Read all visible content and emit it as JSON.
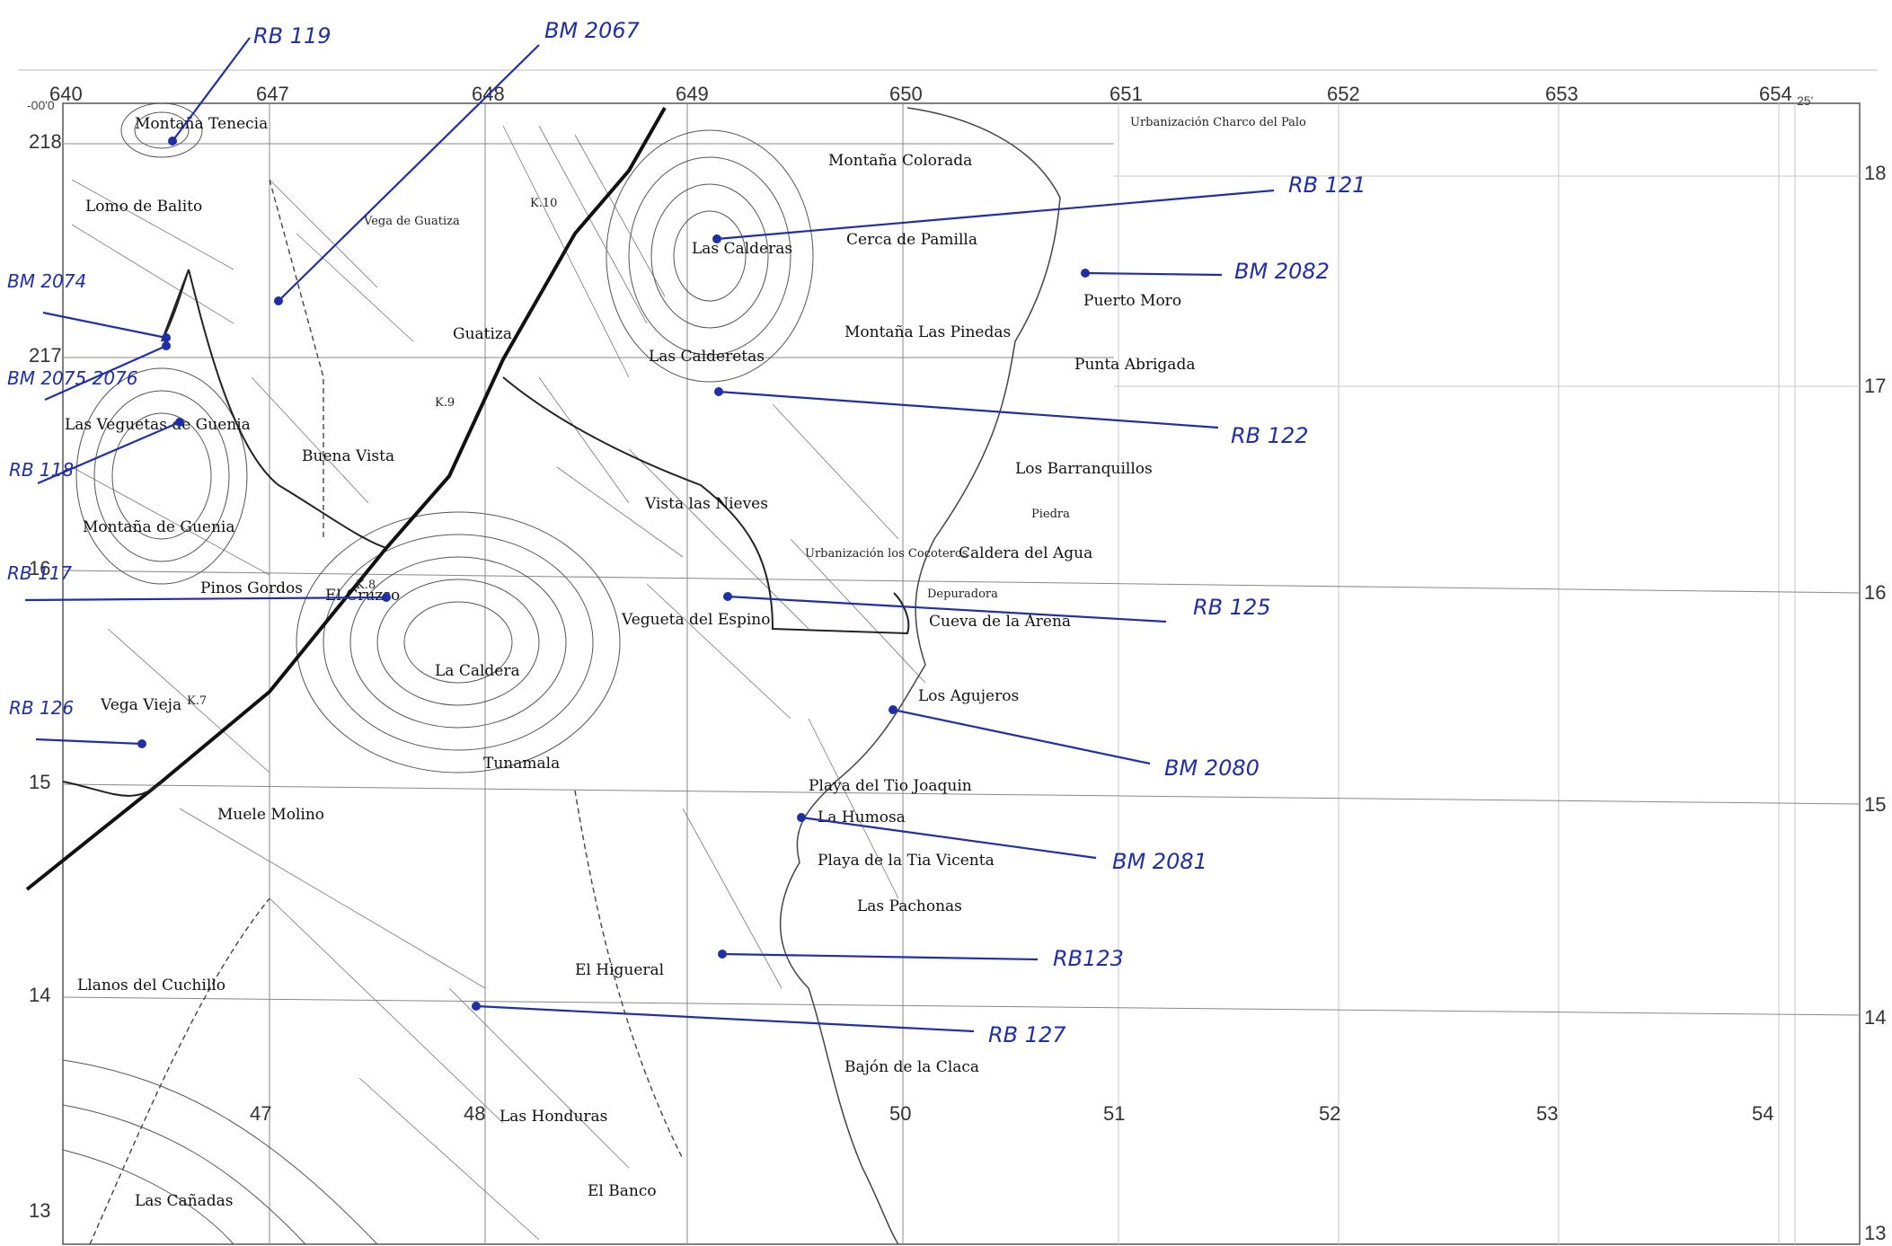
{
  "grid_top": [
    "640",
    "647",
    "648",
    "649",
    "650",
    "651",
    "652",
    "653",
    "654"
  ],
  "grid_bottom": [
    "47",
    "48",
    "50",
    "51",
    "52",
    "53",
    "54"
  ],
  "grid_left": [
    "218",
    "217",
    "16",
    "15",
    "14",
    "13"
  ],
  "grid_right": [
    "18",
    "17",
    "16",
    "15",
    "14",
    "13"
  ],
  "corner_left": "-00'0",
  "corner_right": "25'",
  "place_names": [
    "Montaña Tenecia",
    "Lomo de Balito",
    "Las Veguetas de Guenia",
    "Montaña de Guenia",
    "Buena Vista",
    "Guatiza",
    "Las Calderas",
    "Las Calderetas",
    "Montaña Colorada",
    "Cerca de Pamilla",
    "Puerto Moro",
    "Montaña Las Pinedas",
    "Punta Abrigada",
    "Urbanización Charco del Palo",
    "Los Barranquillos",
    "Caldera del Agua",
    "Vista las Nieves",
    "Urbanización los Cocoteros",
    "Cueva de la Arena",
    "Vegueta del Espino",
    "Pinos Gordos",
    "El Cruzso",
    "La Caldera",
    "Los Agujeros",
    "Vega Vieja",
    "Tunamala",
    "Playa del Tio Joaquin",
    "La Humosa",
    "Muele Molino",
    "Playa de la Tia Vicenta",
    "Las Pachonas",
    "El Higueral",
    "Llanos del Cuchillo",
    "Bajón de la Claca",
    "Las Honduras",
    "El Banco",
    "Las Cañadas",
    "Depuradora",
    "Piedra",
    "K.10",
    "K.9",
    "K.8",
    "K.7",
    "Vega de Guatiza"
  ],
  "annotations": [
    "RB 119",
    "BM 2067",
    "RB 121",
    "BM 2082",
    "BM 2074",
    "BM 2075 2076",
    "RB 118",
    "RB 122",
    "RB 117",
    "RB 125",
    "RB 126",
    "BM 2080",
    "BM 2081",
    "RB123",
    "RB 127"
  ]
}
